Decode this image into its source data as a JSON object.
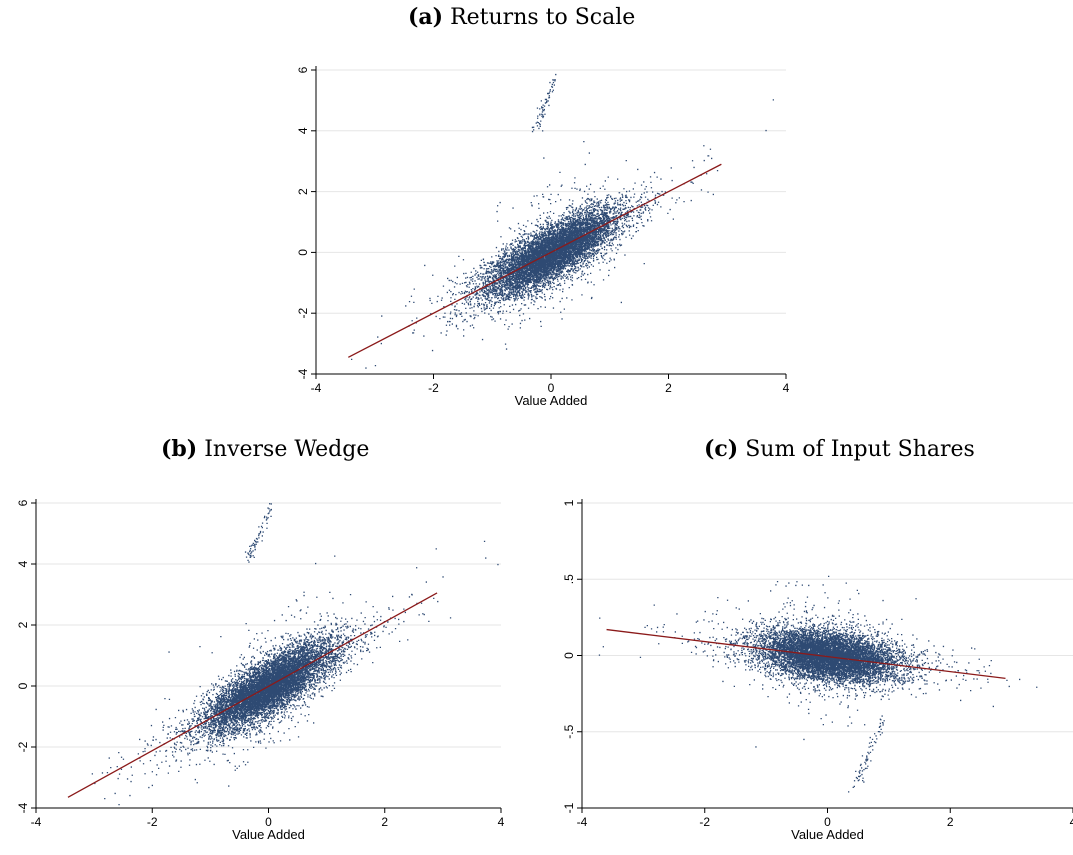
{
  "panels": [
    {
      "label": "(a)",
      "title": "Returns to Scale",
      "xlabel": "Value Added",
      "ylabel": "",
      "xticks": [
        "-4",
        "-2",
        "0",
        "2",
        "4"
      ],
      "yticks": [
        "-4",
        "-2",
        "0",
        "2",
        "4",
        "6"
      ]
    },
    {
      "label": "(b)",
      "title": "Inverse Wedge",
      "xlabel": "Value Added",
      "ylabel": "",
      "xticks": [
        "-4",
        "-2",
        "0",
        "2",
        "4"
      ],
      "yticks": [
        "-4",
        "-2",
        "0",
        "2",
        "4",
        "6"
      ]
    },
    {
      "label": "(c)",
      "title": "Sum of Input Shares",
      "xlabel": "Value Added",
      "ylabel": "",
      "xticks": [
        "-4",
        "-2",
        "0",
        "2",
        "4"
      ],
      "yticks": [
        "-1",
        "-.5",
        "0",
        ".5",
        "1"
      ]
    }
  ],
  "colors": {
    "points": "#2e4a73",
    "fit_line": "#8b1a1a",
    "grid": "#e6e6e6"
  },
  "chart_data": [
    {
      "type": "scatter",
      "title": "Returns to Scale",
      "xlabel": "Value Added",
      "ylabel": "",
      "xlim": [
        -4,
        4
      ],
      "ylim": [
        -4,
        6
      ],
      "grid": true,
      "cloud": {
        "center": [
          0,
          0
        ],
        "x_sd": 0.55,
        "slope": 1.0,
        "resid_sd": 0.45,
        "approx_points": 22000
      },
      "spike": {
        "x_range": [
          -0.3,
          0.1
        ],
        "y_range": [
          4.0,
          5.9
        ]
      },
      "fit_line": {
        "x": [
          -3.45,
          2.9
        ],
        "y": [
          -3.45,
          2.9
        ]
      }
    },
    {
      "type": "scatter",
      "title": "Inverse Wedge",
      "xlabel": "Value Added",
      "ylabel": "",
      "xlim": [
        -4,
        4
      ],
      "ylim": [
        -4,
        6
      ],
      "grid": true,
      "cloud": {
        "center": [
          0,
          0
        ],
        "x_sd": 0.55,
        "slope": 1.05,
        "resid_sd": 0.45,
        "approx_points": 22000
      },
      "spike": {
        "x_range": [
          -0.4,
          0.05
        ],
        "y_range": [
          4.0,
          6.0
        ]
      },
      "fit_line": {
        "x": [
          -3.45,
          2.9
        ],
        "y": [
          -3.65,
          3.05
        ]
      }
    },
    {
      "type": "scatter",
      "title": "Sum of Input Shares",
      "xlabel": "Value Added",
      "ylabel": "",
      "xlim": [
        -4,
        4
      ],
      "ylim": [
        -1,
        1
      ],
      "grid": true,
      "cloud": {
        "center": [
          0,
          0
        ],
        "x_sd": 0.55,
        "slope": -0.05,
        "resid_sd": 0.08,
        "approx_points": 22000
      },
      "spike": {
        "x_range": [
          0.4,
          0.9
        ],
        "y_range": [
          -0.9,
          -0.4
        ]
      },
      "fit_line": {
        "x": [
          -3.6,
          2.9
        ],
        "y": [
          0.17,
          -0.15
        ]
      }
    }
  ]
}
